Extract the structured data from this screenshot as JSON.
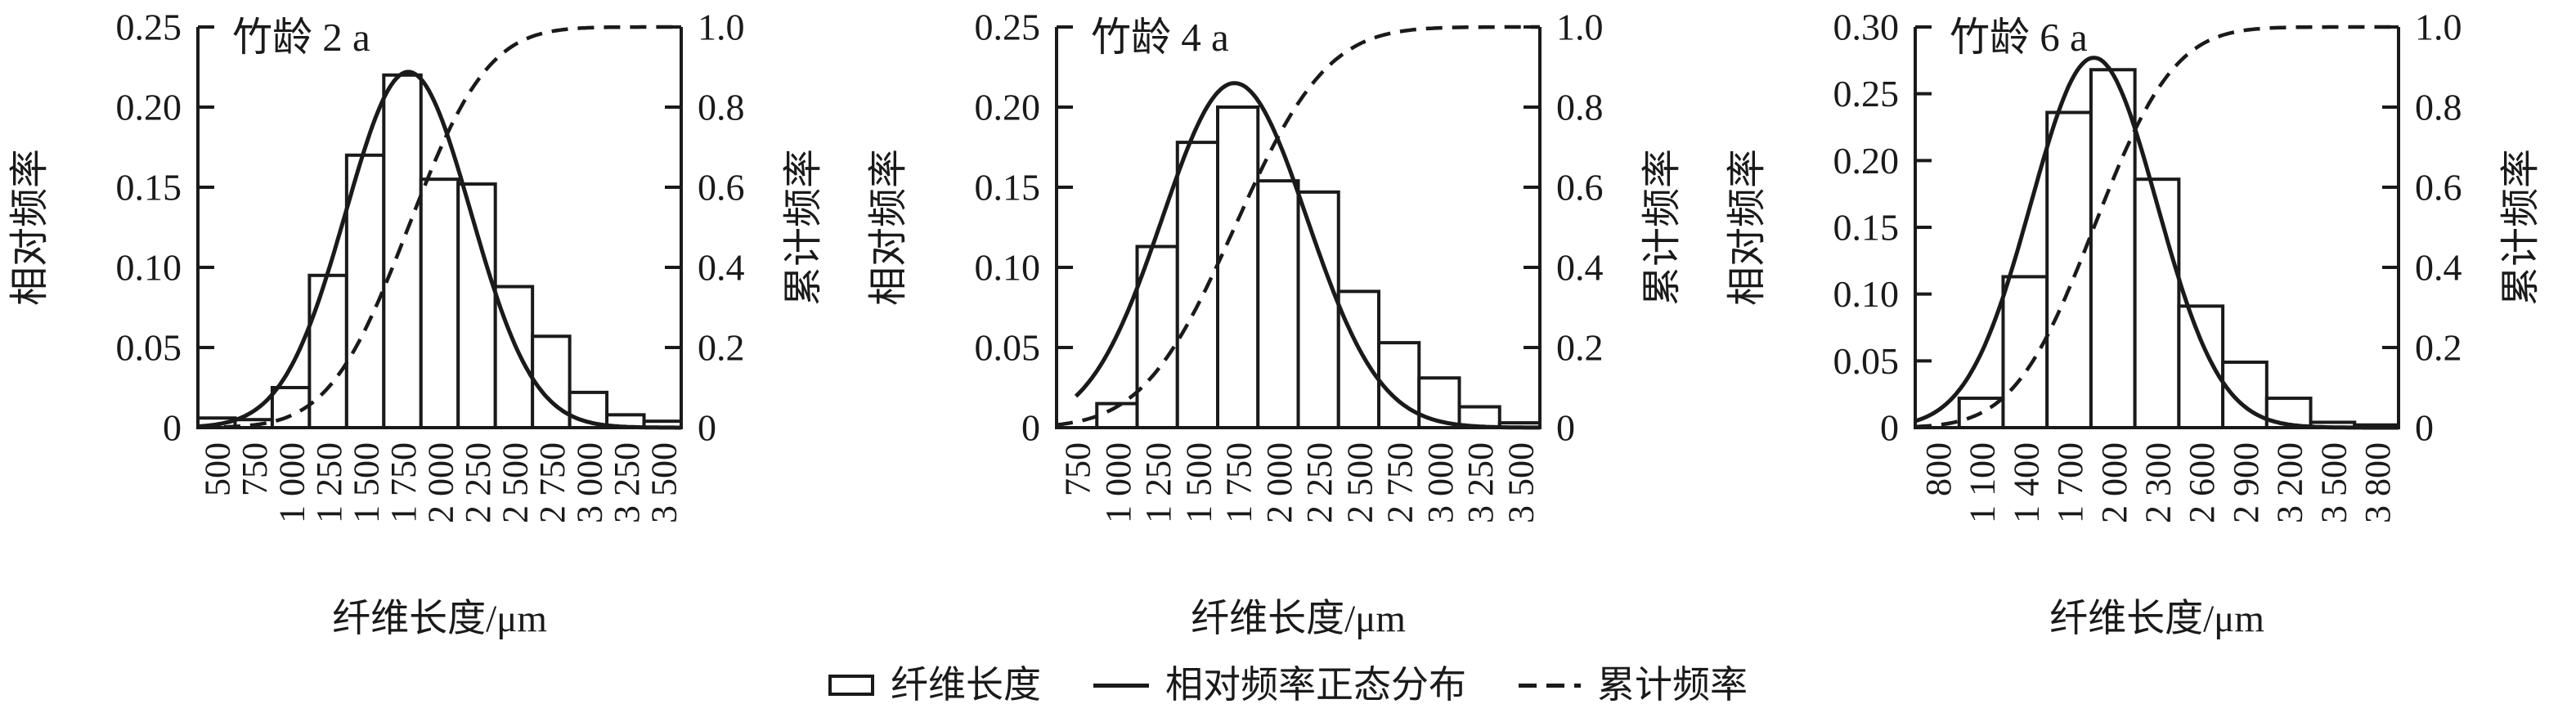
{
  "figure": {
    "background": "#ffffff",
    "ink_color": "#1a1a1a",
    "legend": {
      "items": [
        {
          "symbol": "hollow-bar",
          "label": "纤维长度"
        },
        {
          "symbol": "solid-line",
          "label": "相对频率正态分布"
        },
        {
          "symbol": "dashed-line",
          "label": "累计频率"
        }
      ]
    }
  },
  "chart_data": [
    {
      "type": "bar",
      "title": "竹龄 2 a",
      "xlabel": "纤维长度/μm",
      "ylabel_left": "相对频率",
      "ylabel_right": "累计频率",
      "legend_position": "bottom-shared",
      "grid": false,
      "categories": [
        "500",
        "750",
        "1 000",
        "1 250",
        "1 500",
        "1 750",
        "2 000",
        "2 250",
        "2 500",
        "2 750",
        "3 000",
        "3 250",
        "3 500"
      ],
      "x_values": [
        500,
        750,
        1000,
        1250,
        1500,
        1750,
        2000,
        2250,
        2500,
        2750,
        3000,
        3250,
        3500
      ],
      "values": [
        0.006,
        0.005,
        0.025,
        0.095,
        0.17,
        0.22,
        0.155,
        0.152,
        0.088,
        0.057,
        0.022,
        0.008,
        0.004
      ],
      "ylim_left": [
        0,
        0.25
      ],
      "yticks_left_labels": [
        "0",
        "0.05",
        "0.10",
        "0.15",
        "0.20",
        "0.25"
      ],
      "yticks_left_values": [
        0,
        0.05,
        0.1,
        0.15,
        0.2,
        0.25
      ],
      "ylim_right": [
        0,
        1.0
      ],
      "yticks_right_labels": [
        "0",
        "0.2",
        "0.4",
        "0.6",
        "0.8",
        "1.0"
      ],
      "yticks_right_values": [
        0,
        0.2,
        0.4,
        0.6,
        0.8,
        1.0
      ],
      "normal_fit": {
        "mean": 1790,
        "sd": 420,
        "peak": 0.222,
        "draw_from": 375,
        "draw_to": 3625
      },
      "cumulative": "normal-cdf-right-axis"
    },
    {
      "type": "bar",
      "title": "竹龄 4 a",
      "xlabel": "纤维长度/μm",
      "ylabel_left": "相对频率",
      "ylabel_right": "累计频率",
      "legend_position": "bottom-shared",
      "grid": false,
      "categories": [
        "750",
        "1 000",
        "1 250",
        "1 500",
        "1 750",
        "2 000",
        "2 250",
        "2 500",
        "2 750",
        "3 000",
        "3 250",
        "3 500"
      ],
      "x_values": [
        750,
        1000,
        1250,
        1500,
        1750,
        2000,
        2250,
        2500,
        2750,
        3000,
        3250,
        3500
      ],
      "values": [
        0,
        0.015,
        0.113,
        0.178,
        0.2,
        0.154,
        0.147,
        0.085,
        0.053,
        0.031,
        0.013,
        0.003
      ],
      "ylim_left": [
        0,
        0.25
      ],
      "yticks_left_labels": [
        "0",
        "0.05",
        "0.10",
        "0.15",
        "0.20",
        "0.25"
      ],
      "yticks_left_values": [
        0,
        0.05,
        0.1,
        0.15,
        0.2,
        0.25
      ],
      "ylim_right": [
        0,
        1.0
      ],
      "yticks_right_labels": [
        "0",
        "0.2",
        "0.4",
        "0.6",
        "0.8",
        "1.0"
      ],
      "yticks_right_values": [
        0,
        0.2,
        0.4,
        0.6,
        0.8,
        1.0
      ],
      "normal_fit": {
        "mean": 1730,
        "sd": 450,
        "peak": 0.215,
        "draw_from": 745,
        "draw_to": 3625
      },
      "cumulative": "normal-cdf-right-axis"
    },
    {
      "type": "bar",
      "title": "竹龄 6 a",
      "xlabel": "纤维长度/μm",
      "ylabel_left": "相对频率",
      "ylabel_right": "累计频率",
      "legend_position": "bottom-shared",
      "grid": false,
      "categories": [
        "800",
        "1 100",
        "1 400",
        "1 700",
        "2 000",
        "2 300",
        "2 600",
        "2 900",
        "3 200",
        "3 500",
        "3 800"
      ],
      "x_values": [
        800,
        1100,
        1400,
        1700,
        2000,
        2300,
        2600,
        2900,
        3200,
        3500,
        3800
      ],
      "values": [
        0,
        0.022,
        0.113,
        0.236,
        0.268,
        0.186,
        0.091,
        0.049,
        0.022,
        0.004,
        0.002
      ],
      "ylim_left": [
        0,
        0.3
      ],
      "yticks_left_labels": [
        "0",
        "0.05",
        "0.10",
        "0.15",
        "0.20",
        "0.25",
        "0.30"
      ],
      "yticks_left_values": [
        0,
        0.05,
        0.1,
        0.15,
        0.2,
        0.25,
        0.3
      ],
      "ylim_right": [
        0,
        1.0
      ],
      "yticks_right_labels": [
        "0",
        "0.2",
        "0.4",
        "0.6",
        "0.8",
        "1.0"
      ],
      "yticks_right_values": [
        0,
        0.2,
        0.4,
        0.6,
        0.8,
        1.0
      ],
      "normal_fit": {
        "mean": 1870,
        "sd": 430,
        "peak": 0.277,
        "draw_from": 650,
        "draw_to": 3950
      },
      "cumulative": "normal-cdf-right-axis"
    }
  ]
}
